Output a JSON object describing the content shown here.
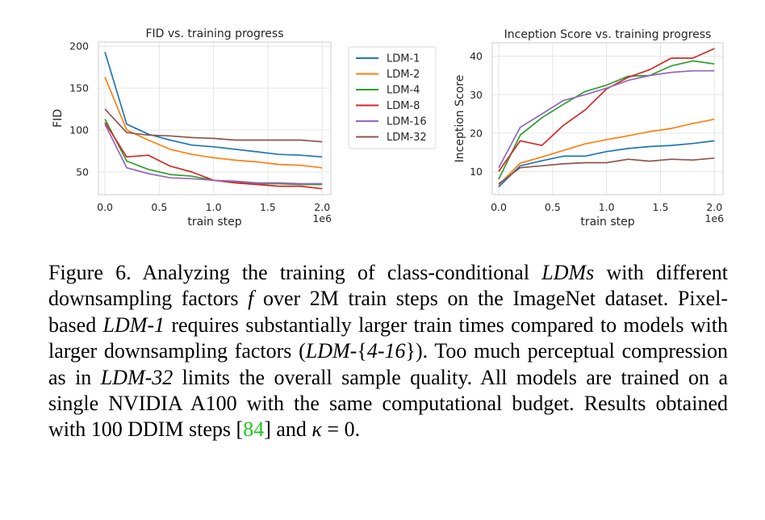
{
  "chart_data": [
    {
      "type": "line",
      "title": "FID vs. training progress",
      "xlabel": "train step",
      "ylabel": "FID",
      "x_offset_label": "1e6",
      "xlim": [
        -0.06,
        2.08
      ],
      "ylim": [
        23,
        205
      ],
      "xticks": [
        0.0,
        0.5,
        1.0,
        1.5,
        2.0
      ],
      "xtick_labels": [
        "0.0",
        "0.5",
        "1.0",
        "1.5",
        "2.0"
      ],
      "yticks": [
        50,
        100,
        150,
        200
      ],
      "ytick_labels": [
        "50",
        "100",
        "150",
        "200"
      ],
      "grid": true,
      "x": [
        0.0,
        0.2,
        0.4,
        0.6,
        0.8,
        1.0,
        1.2,
        1.4,
        1.6,
        1.8,
        2.0
      ],
      "series": [
        {
          "name": "LDM-1",
          "color": "#1f77b4",
          "values": [
            193,
            107,
            95,
            88,
            82,
            80,
            77,
            74,
            71,
            70,
            68
          ]
        },
        {
          "name": "LDM-2",
          "color": "#ff7f0e",
          "values": [
            163,
            100,
            88,
            77,
            71,
            67,
            64,
            62,
            59,
            58,
            55
          ]
        },
        {
          "name": "LDM-4",
          "color": "#2ca02c",
          "values": [
            113,
            63,
            53,
            47,
            45,
            40,
            38,
            36,
            36,
            35,
            35
          ]
        },
        {
          "name": "LDM-8",
          "color": "#d62728",
          "values": [
            109,
            68,
            70,
            57,
            50,
            40,
            37,
            35,
            33,
            33,
            30
          ]
        },
        {
          "name": "LDM-16",
          "color": "#9467bd",
          "values": [
            107,
            55,
            48,
            43,
            42,
            40,
            39,
            37,
            37,
            36,
            36
          ]
        },
        {
          "name": "LDM-32",
          "color": "#8c564b",
          "values": [
            125,
            97,
            94,
            93,
            91,
            90,
            88,
            88,
            88,
            88,
            86
          ]
        }
      ],
      "legend_position": "right"
    },
    {
      "type": "line",
      "title": "Inception Score vs. training progress",
      "xlabel": "train step",
      "ylabel": "Inception Score",
      "x_offset_label": "1e6",
      "xlim": [
        -0.06,
        2.08
      ],
      "ylim": [
        4,
        43.5
      ],
      "xticks": [
        0.0,
        0.5,
        1.0,
        1.5,
        2.0
      ],
      "xtick_labels": [
        "0.0",
        "0.5",
        "1.0",
        "1.5",
        "2.0"
      ],
      "yticks": [
        10,
        20,
        30,
        40
      ],
      "ytick_labels": [
        "10",
        "20",
        "30",
        "40"
      ],
      "grid": true,
      "x": [
        0.0,
        0.2,
        0.4,
        0.6,
        0.8,
        1.0,
        1.2,
        1.4,
        1.6,
        1.8,
        2.0
      ],
      "series": [
        {
          "name": "LDM-1",
          "color": "#1f77b4",
          "values": [
            6,
            11.5,
            12.8,
            14,
            14,
            15.2,
            16,
            16.5,
            16.8,
            17.3,
            18
          ]
        },
        {
          "name": "LDM-2",
          "color": "#ff7f0e",
          "values": [
            6.5,
            12.2,
            13.8,
            15.5,
            17.2,
            18.3,
            19.3,
            20.4,
            21.2,
            22.5,
            23.6
          ]
        },
        {
          "name": "LDM-4",
          "color": "#2ca02c",
          "values": [
            8,
            19.5,
            24,
            27.5,
            30.8,
            32.5,
            34.8,
            35,
            37.5,
            38.8,
            38
          ]
        },
        {
          "name": "LDM-8",
          "color": "#d62728",
          "values": [
            10,
            18,
            16.8,
            22,
            26,
            31.5,
            34.5,
            36.5,
            39.5,
            39.5,
            42
          ]
        },
        {
          "name": "LDM-16",
          "color": "#9467bd",
          "values": [
            11,
            21.5,
            25,
            28.5,
            30,
            31.7,
            33.7,
            35,
            35.8,
            36.2,
            36.2
          ]
        },
        {
          "name": "LDM-32",
          "color": "#8c564b",
          "values": [
            6.8,
            11,
            11.5,
            12,
            12.3,
            12.3,
            13.2,
            12.7,
            13.2,
            13,
            13.5
          ]
        }
      ]
    }
  ],
  "caption": {
    "intro": "Figure 6. Analyzing the training of class-conditional ",
    "ldms": "LDMs",
    "t2": " with different downsampling factors ",
    "f": "f",
    "t3": " over 2M train steps on the ImageNet dataset. Pixel-based ",
    "ldm1": "LDM-1",
    "t4": " requires substantially larger train times compared to models with larger downsampling factors (",
    "ldm416a": "LDM-",
    "brace_open": "{",
    "ldm416b": "4-16",
    "brace_close": "}",
    "t5": "). Too much perceptual compression as in ",
    "ldm32": "LDM-32",
    "t6": " limits the overall sample quality. All models are trained on a single NVIDIA A100 with the same computational budget. Results obtained with 100 DDIM steps [",
    "cite": "84",
    "t7": "] and ",
    "kappa": "κ",
    "t8": " = 0."
  }
}
